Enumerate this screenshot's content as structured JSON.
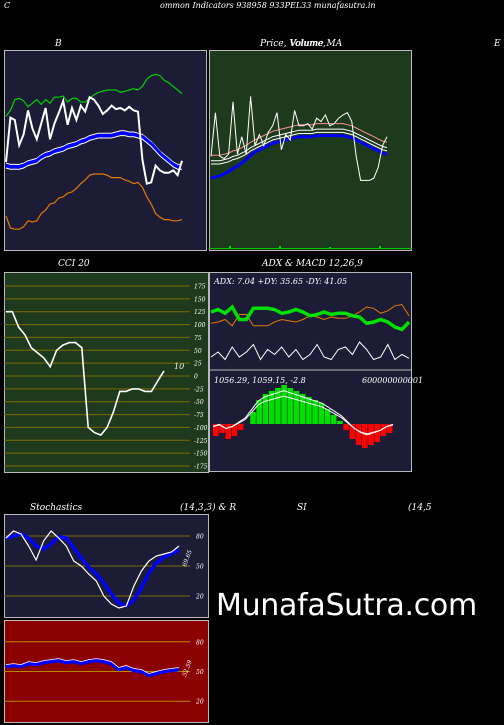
{
  "header": {
    "left": "C",
    "title": "ommon  Indicators 938958  933PEL33 munafasutra.in"
  },
  "panels": {
    "bb": {
      "title": "B"
    },
    "price": {
      "title_a": "Price,  Volume,",
      "title_b": "Volume  MA",
      "edge_label": "E"
    },
    "cci": {
      "title": "CCI 20",
      "end_label": "10",
      "axis": [
        "175",
        "150",
        "125",
        "100",
        "75",
        "50",
        "25",
        "0",
        "-25",
        "-50",
        "-75",
        "-100",
        "-125",
        "-150",
        "-175"
      ]
    },
    "adx": {
      "title": "ADX  & MACD 12,26,9",
      "readout": "ADX: 7.04   +DY: 35.65 -DY: 41.05"
    },
    "macd": {
      "readout": "1056.29,   1059.15,  -2.8",
      "big": "600000000001"
    },
    "stoch": {
      "title_a": "Stochastics",
      "title_b": "(14,3,3) & R",
      "title_c": "SI",
      "title_d": "(14,5",
      "end_label": "69.65",
      "axis": [
        "80",
        "50",
        "20"
      ]
    },
    "rsi": {
      "end_label": "52.59",
      "axis": [
        "80",
        "50",
        "20"
      ]
    }
  },
  "watermark": "MunafaSutra.com",
  "colors": {
    "dark_navy": "#1c1c36",
    "dark_green": "#1e3a1c",
    "olive": "#7a6a00",
    "dark_red": "#8b0000",
    "blue": "#0000ff",
    "green": "#00e000",
    "orange": "#e07a00"
  },
  "chart_data": [
    {
      "type": "line",
      "name": "bollinger",
      "series": [
        {
          "name": "upper",
          "values": [
            103,
            108,
            117,
            118,
            116,
            111,
            114,
            117,
            113,
            117,
            114,
            119,
            119,
            120,
            115,
            118,
            118,
            115,
            115,
            118,
            121,
            123,
            124,
            125,
            125,
            125,
            123,
            124,
            125,
            126,
            125,
            128,
            134,
            137,
            138,
            137,
            133,
            131,
            128,
            125,
            122
          ]
        },
        {
          "name": "close",
          "values": [
            65,
            102,
            100,
            79,
            88,
            108,
            93,
            84,
            97,
            110,
            84,
            97,
            106,
            116,
            96,
            110,
            100,
            112,
            107,
            119,
            117,
            112,
            105,
            108,
            112,
            109,
            110,
            108,
            111,
            108,
            107,
            67,
            47,
            48,
            62,
            58,
            56,
            56,
            58,
            54,
            66
          ]
        },
        {
          "name": "middle",
          "values": [
            62,
            61,
            61,
            61,
            62,
            64,
            65,
            66,
            69,
            71,
            72,
            74,
            75,
            76,
            78,
            79,
            80,
            82,
            83,
            85,
            86,
            87,
            87,
            87,
            87,
            88,
            89,
            89,
            88,
            88,
            87,
            86,
            83,
            80,
            76,
            72,
            69,
            66,
            63,
            61,
            61
          ]
        },
        {
          "name": "lower",
          "values": [
            20,
            10,
            9,
            9,
            11,
            16,
            15,
            16,
            22,
            25,
            30,
            31,
            35,
            36,
            39,
            40,
            43,
            47,
            50,
            54,
            55,
            55,
            55,
            54,
            52,
            52,
            52,
            50,
            49,
            47,
            48,
            44,
            36,
            30,
            22,
            19,
            17,
            17,
            16,
            16,
            17
          ]
        }
      ]
    },
    {
      "type": "line",
      "name": "price_volume",
      "series": [
        {
          "name": "close",
          "values": [
            90,
            130,
            90,
            88,
            92,
            140,
            92,
            108,
            92,
            145,
            100,
            110,
            100,
            112,
            118,
            130,
            96,
            110,
            105,
            132,
            118,
            118,
            120,
            115,
            125,
            122,
            128,
            118,
            120,
            125,
            128,
            130,
            122,
            90,
            68,
            68,
            68,
            70,
            80,
            100,
            108
          ]
        },
        {
          "name": "ma",
          "values": [
            88,
            88,
            88,
            89,
            90,
            92,
            93,
            95,
            97,
            100,
            102,
            104,
            106,
            108,
            110,
            111,
            112,
            113,
            114,
            115,
            116,
            116,
            116,
            116,
            117,
            117,
            117,
            117,
            117,
            117,
            117,
            116,
            115,
            113,
            111,
            109,
            107,
            105,
            103,
            101,
            100
          ]
        }
      ]
    },
    {
      "type": "line",
      "name": "cci",
      "ylim": [
        -175,
        175
      ],
      "series": [
        {
          "name": "cci",
          "values": [
            125,
            125,
            95,
            80,
            55,
            45,
            35,
            18,
            50,
            60,
            65,
            65,
            55,
            -100,
            -110,
            -115,
            -100,
            -70,
            -30,
            -30,
            -25,
            -25,
            -30,
            -30,
            -10,
            10
          ]
        }
      ]
    },
    {
      "type": "line",
      "name": "adx",
      "series": [
        {
          "name": "+DY",
          "values": [
            44,
            46,
            43,
            48,
            38,
            38,
            47,
            47,
            47,
            46,
            43,
            44,
            46,
            44,
            41,
            42,
            44,
            42,
            43,
            43,
            41,
            40,
            35,
            36,
            38,
            36,
            32,
            30,
            36
          ]
        },
        {
          "name": "-DY",
          "values": [
            35,
            36,
            38,
            33,
            42,
            42,
            33,
            33,
            33,
            36,
            38,
            37,
            36,
            38,
            41,
            40,
            38,
            40,
            39,
            39,
            41,
            44,
            48,
            47,
            43,
            45,
            49,
            50,
            41
          ]
        },
        {
          "name": "ADX",
          "values": [
            8,
            12,
            6,
            16,
            8,
            12,
            18,
            6,
            14,
            10,
            16,
            8,
            14,
            6,
            10,
            18,
            8,
            6,
            14,
            16,
            10,
            20,
            14,
            6,
            8,
            18,
            6,
            10,
            7
          ]
        }
      ]
    },
    {
      "type": "bar",
      "name": "macd",
      "values": [
        -4,
        -3,
        -5,
        -4,
        -2,
        0,
        4,
        8,
        10,
        11,
        12,
        13,
        12,
        11,
        10,
        9,
        8,
        7,
        5,
        3,
        1,
        -2,
        -5,
        -7,
        -8,
        -7,
        -6,
        -4,
        -3
      ]
    },
    {
      "type": "line",
      "name": "stochastics",
      "ylim": [
        0,
        100
      ],
      "series": [
        {
          "name": "%K",
          "values": [
            78,
            85,
            82,
            70,
            56,
            75,
            85,
            78,
            70,
            55,
            50,
            42,
            35,
            20,
            12,
            8,
            10,
            30,
            45,
            55,
            60,
            62,
            64,
            70
          ]
        },
        {
          "name": "%D",
          "values": [
            78,
            80,
            82,
            78,
            70,
            67,
            72,
            79,
            78,
            68,
            58,
            49,
            42,
            33,
            22,
            13,
            10,
            16,
            28,
            43,
            53,
            59,
            62,
            66
          ]
        }
      ]
    },
    {
      "type": "line",
      "name": "rsi",
      "ylim": [
        0,
        100
      ],
      "series": [
        {
          "name": "rsi",
          "values": [
            55,
            56,
            55,
            58,
            57,
            59,
            60,
            61,
            59,
            60,
            58,
            60,
            61,
            60,
            58,
            52,
            54,
            51,
            50,
            46,
            48,
            50,
            51,
            52
          ]
        }
      ]
    }
  ]
}
